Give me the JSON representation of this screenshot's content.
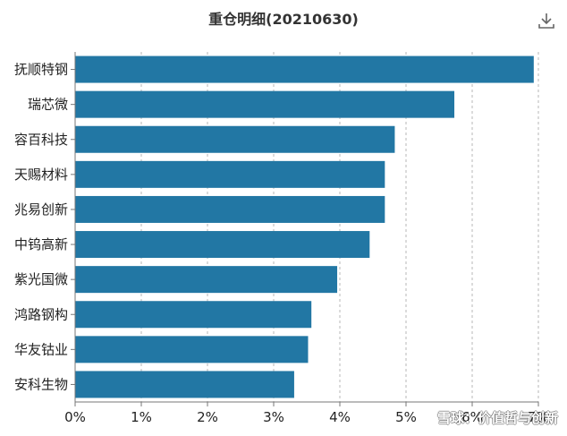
{
  "header": {
    "title": "重仓明细(20210630)"
  },
  "toolbar": {
    "download_icon": "download-icon"
  },
  "watermark": {
    "text": "雪球：价值哲与创新"
  },
  "colors": {
    "bar": "#2277A4",
    "grid": "#b7b7b7",
    "axis": "#777777"
  },
  "chart_data": {
    "type": "bar",
    "orientation": "horizontal",
    "categories": [
      "抚顺特钢",
      "瑞芯微",
      "容百科技",
      "天赐材料",
      "兆易创新",
      "中钨高新",
      "紫光国微",
      "鸿路钢构",
      "华友钴业",
      "安科生物"
    ],
    "values": [
      6.93,
      5.73,
      4.83,
      4.68,
      4.68,
      4.45,
      3.96,
      3.57,
      3.52,
      3.31
    ],
    "xlim": [
      0,
      7
    ],
    "xticks": [
      0,
      1,
      2,
      3,
      4,
      5,
      6,
      7
    ],
    "xtick_labels": [
      "0%",
      "1%",
      "2%",
      "3%",
      "4%",
      "5%",
      "6%",
      "7%"
    ],
    "grid": true,
    "title": "重仓明细(20210630)",
    "xlabel": "",
    "ylabel": ""
  }
}
